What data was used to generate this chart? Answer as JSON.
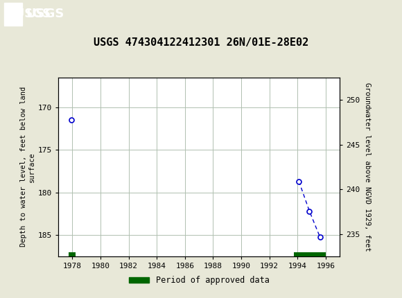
{
  "title": "USGS 474304122412301 26N/01E-28E02",
  "title_fontsize": 11,
  "header_color": "#006B3C",
  "bg_color": "#e8e8d8",
  "plot_bg_color": "#ffffff",
  "grid_color": "#b0c0b0",
  "ylabel_left": "Depth to water level, feet below land\nsurface",
  "ylabel_right": "Groundwater level above NGVD 1929, feet",
  "ylim_left": [
    187.5,
    166.5
  ],
  "ylim_right": [
    232.5,
    252.5
  ],
  "yticks_left": [
    170,
    175,
    180,
    185
  ],
  "yticks_right": [
    235,
    240,
    245,
    250
  ],
  "xlim": [
    1977.0,
    1997.0
  ],
  "xticks": [
    1978,
    1980,
    1982,
    1984,
    1986,
    1988,
    1990,
    1992,
    1994,
    1996
  ],
  "data_x": [
    1977.95,
    1994.1,
    1994.85,
    1995.6
  ],
  "data_y": [
    171.5,
    178.7,
    182.2,
    185.25
  ],
  "line_color": "#0000cc",
  "marker_color": "#0000cc",
  "approved_bars": [
    {
      "x_start": 1977.75,
      "x_end": 1978.25
    },
    {
      "x_start": 1993.75,
      "x_end": 1996.0
    }
  ],
  "approved_color": "#006600",
  "legend_label": "Period of approved data",
  "font_family": "DejaVu Sans Mono"
}
